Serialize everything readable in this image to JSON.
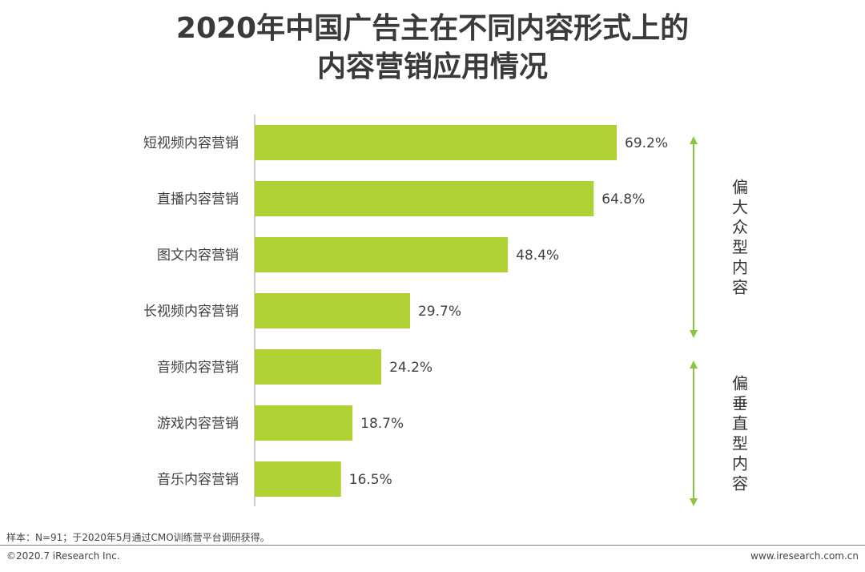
{
  "title_lines": [
    "2020年中国广告主在不同内容形式上的",
    "内容营销应用情况"
  ],
  "chart_data": {
    "type": "bar",
    "orientation": "horizontal",
    "categories": [
      "短视频内容营销",
      "直播内容营销",
      "图文内容营销",
      "长视频内容营销",
      "音频内容营销",
      "游戏内容营销",
      "音乐内容营销"
    ],
    "values": [
      69.2,
      64.8,
      48.4,
      29.7,
      24.2,
      18.7,
      16.5
    ],
    "value_labels": [
      "69.2%",
      "64.8%",
      "48.4%",
      "29.7%",
      "24.2%",
      "18.7%",
      "16.5%"
    ],
    "bar_color": "#b0d134",
    "xlim": [
      0,
      100
    ],
    "groups": [
      {
        "label": "偏大众型内容",
        "label_chars": [
          "偏",
          "大",
          "众",
          "型",
          "内",
          "容"
        ],
        "from": 0,
        "to": 3
      },
      {
        "label": "偏垂直型内容",
        "label_chars": [
          "偏",
          "垂",
          "直",
          "型",
          "内",
          "容"
        ],
        "from": 4,
        "to": 6
      }
    ],
    "arrow_color": "#8cc63f"
  },
  "footer": {
    "note": "样本：N=91；于2020年5月通过CMO训练营平台调研获得。",
    "copyright": "©2020.7 iResearch Inc.",
    "url": "www.iresearch.com.cn"
  }
}
